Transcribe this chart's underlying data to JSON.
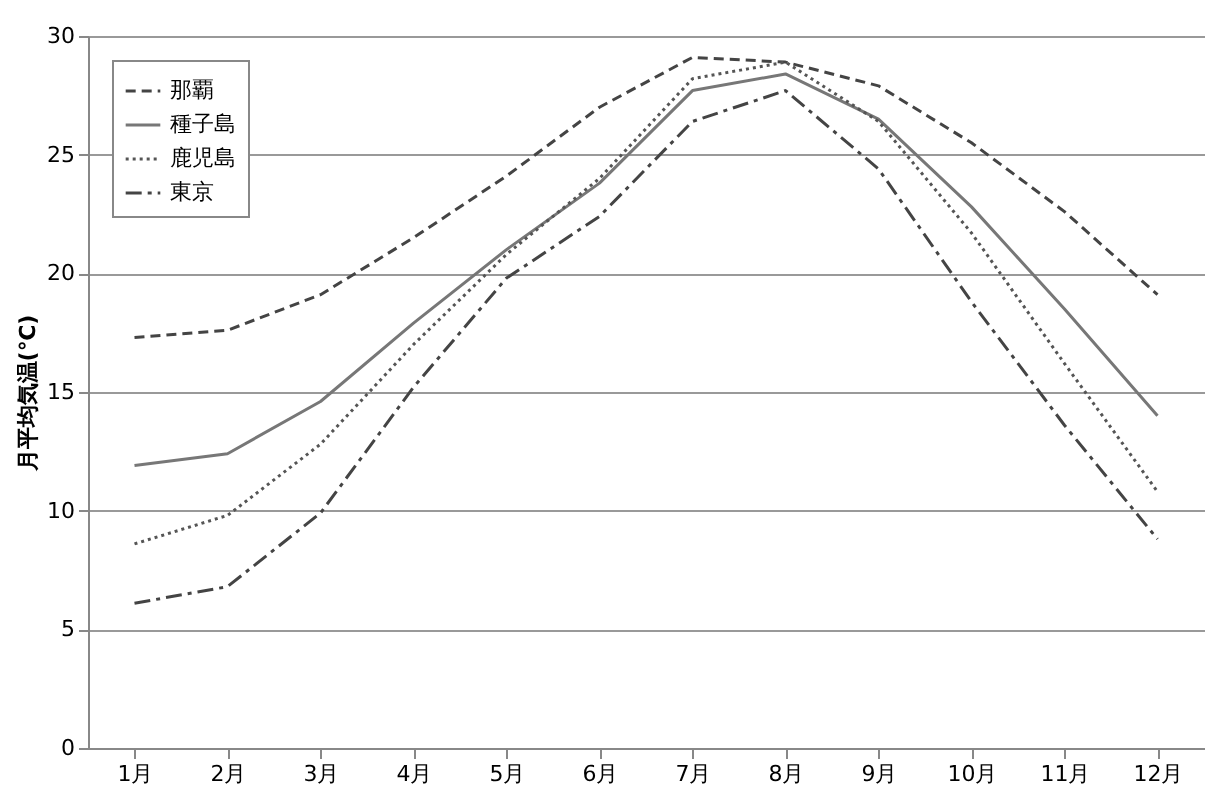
{
  "chart_data": {
    "type": "line",
    "ylabel": "月平均気温(℃)",
    "categories": [
      "1月",
      "2月",
      "3月",
      "4月",
      "5月",
      "6月",
      "7月",
      "8月",
      "9月",
      "10月",
      "11月",
      "12月"
    ],
    "series": [
      {
        "name": "那覇",
        "color": "#444444",
        "line_style": "dashed",
        "values": [
          17.3,
          17.6,
          19.1,
          21.5,
          24.1,
          27.0,
          29.1,
          28.9,
          27.9,
          25.5,
          22.6,
          19.1
        ]
      },
      {
        "name": "種子島",
        "color": "#777777",
        "line_style": "solid",
        "values": [
          11.9,
          12.4,
          14.6,
          17.9,
          21.0,
          23.8,
          27.7,
          28.4,
          26.5,
          22.8,
          18.5,
          14.0
        ]
      },
      {
        "name": "鹿児島",
        "color": "#555555",
        "line_style": "dotted",
        "values": [
          8.6,
          9.8,
          12.8,
          17.0,
          20.8,
          24.0,
          28.2,
          28.9,
          26.4,
          21.7,
          16.2,
          10.8
        ]
      },
      {
        "name": "東京",
        "color": "#444444",
        "line_style": "dashdot",
        "values": [
          6.1,
          6.8,
          9.9,
          15.2,
          19.8,
          22.4,
          26.4,
          27.7,
          24.4,
          18.8,
          13.6,
          8.8
        ]
      }
    ],
    "ylim": [
      0,
      30
    ],
    "yticks": [
      0,
      5,
      10,
      15,
      20,
      25,
      30
    ],
    "grid": "y",
    "legend": "top left",
    "marker": "none"
  }
}
